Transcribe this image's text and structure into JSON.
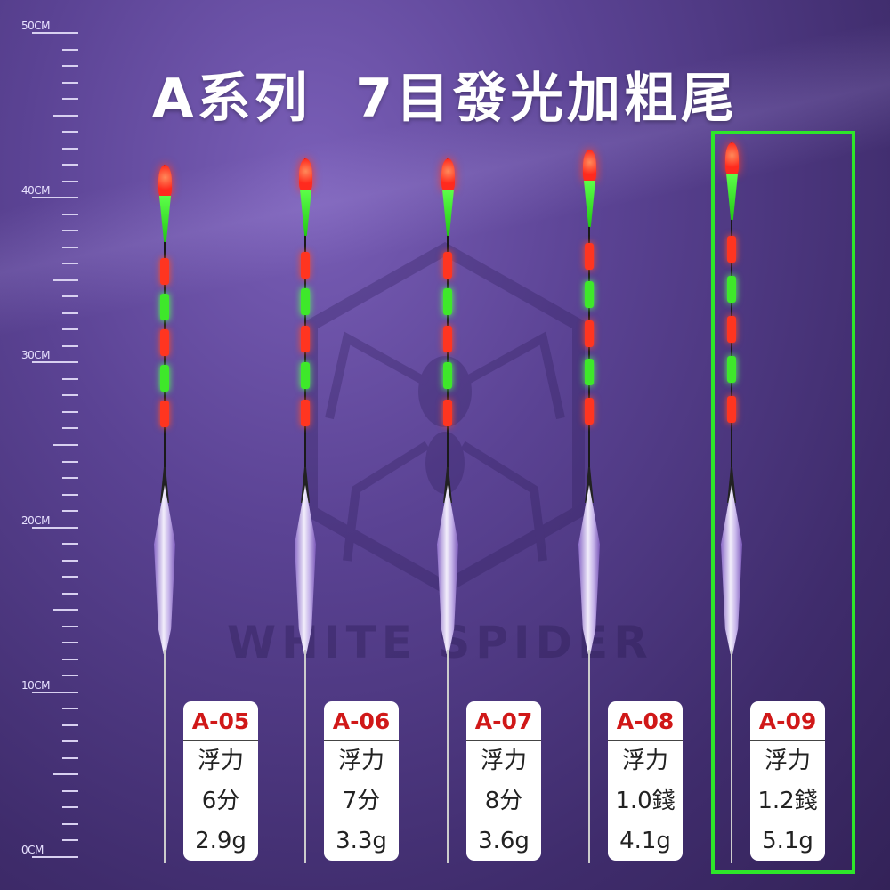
{
  "title": "A系列  7目發光加粗尾",
  "ruler": {
    "labels": [
      "50CM",
      "40CM",
      "30CM",
      "20CM",
      "10CM",
      "0CM"
    ]
  },
  "watermark": "WHITE SPIDER",
  "colors": {
    "code": "#d01818",
    "highlight": "#2ee62a",
    "glow_red": "#ff3520",
    "glow_green": "#3ee82a"
  },
  "products": [
    {
      "code": "A-05",
      "label": "浮力",
      "buoyancy": "6分",
      "weight": "2.9g",
      "selected": false
    },
    {
      "code": "A-06",
      "label": "浮力",
      "buoyancy": "7分",
      "weight": "3.3g",
      "selected": false
    },
    {
      "code": "A-07",
      "label": "浮力",
      "buoyancy": "8分",
      "weight": "3.6g",
      "selected": false
    },
    {
      "code": "A-08",
      "label": "浮力",
      "buoyancy": "1.0錢",
      "weight": "4.1g",
      "selected": false
    },
    {
      "code": "A-09",
      "label": "浮力",
      "buoyancy": "1.2錢",
      "weight": "5.1g",
      "selected": true
    }
  ]
}
